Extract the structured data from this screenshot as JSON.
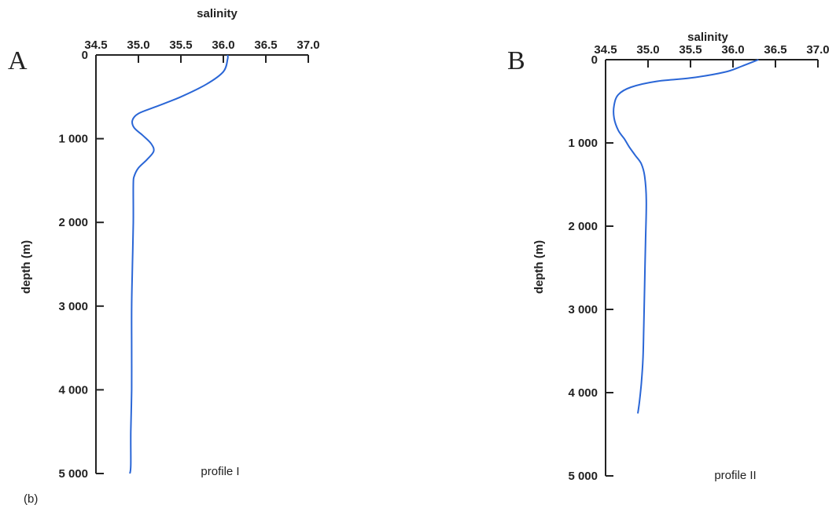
{
  "figure_label": "(b)",
  "chart_data": [
    {
      "type": "line",
      "panel_label": "A",
      "title": "profile I",
      "xlabel": "salinity",
      "ylabel": "depth (m)",
      "xlim": [
        34.5,
        37.0
      ],
      "ylim": [
        0,
        5000
      ],
      "x_ticks": [
        "34.5",
        "35.0",
        "35.5",
        "36.0",
        "36.5",
        "37.0"
      ],
      "y_ticks": [
        "0",
        "1 000",
        "2 000",
        "3 000",
        "4 000",
        "5 000"
      ],
      "series": [
        {
          "x": [
            36.05,
            36.05,
            36.0,
            35.8,
            35.5,
            35.2,
            35.0,
            34.93,
            34.95,
            35.05,
            35.15,
            35.18,
            35.1,
            35.0,
            34.95,
            34.94,
            34.94,
            34.93,
            34.92,
            34.92,
            34.92,
            34.91,
            34.91,
            34.9
          ],
          "y": [
            0,
            50,
            200,
            350,
            500,
            620,
            700,
            780,
            870,
            960,
            1060,
            1150,
            1250,
            1350,
            1450,
            1550,
            2000,
            2500,
            3000,
            3500,
            4000,
            4500,
            4900,
            5000
          ]
        }
      ]
    },
    {
      "type": "line",
      "panel_label": "B",
      "title": "profile II",
      "xlabel": "salinity",
      "ylabel": "depth (m)",
      "xlim": [
        34.5,
        37.0
      ],
      "ylim": [
        0,
        5000
      ],
      "x_ticks": [
        "34.5",
        "35.0",
        "35.5",
        "36.0",
        "36.5",
        "37.0"
      ],
      "y_ticks": [
        "0",
        "1 000",
        "2 000",
        "3 000",
        "4 000",
        "5 000"
      ],
      "series": [
        {
          "x": [
            36.3,
            36.1,
            35.9,
            35.5,
            35.1,
            34.8,
            34.65,
            34.6,
            34.6,
            34.65,
            34.72,
            34.78,
            34.85,
            34.92,
            34.96,
            34.98,
            34.97,
            34.96,
            34.95,
            34.94,
            34.92,
            34.9,
            34.88
          ],
          "y": [
            0,
            80,
            150,
            220,
            260,
            330,
            420,
            550,
            700,
            850,
            950,
            1050,
            1150,
            1250,
            1400,
            1700,
            2200,
            2700,
            3200,
            3600,
            3900,
            4100,
            4250
          ]
        }
      ]
    }
  ]
}
